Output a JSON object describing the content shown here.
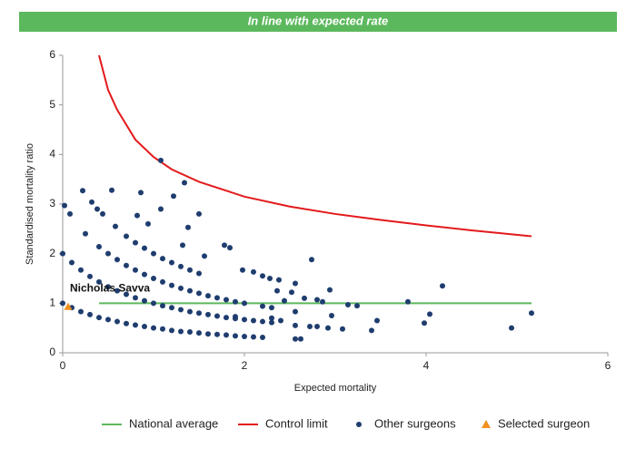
{
  "chart_data": {
    "type": "scatter",
    "title": "In line with expected rate",
    "xlabel": "Expected mortality",
    "ylabel": "Standardised mortality ratio",
    "xlim": [
      0,
      6
    ],
    "ylim": [
      0,
      6
    ],
    "xticks": [
      0,
      2,
      4,
      6
    ],
    "yticks": [
      0,
      1,
      2,
      3,
      4,
      5,
      6
    ],
    "series": [
      {
        "name": "National average",
        "kind": "line",
        "color": "#5cb85c",
        "x": [
          0.4,
          5.16
        ],
        "values": [
          1,
          1
        ]
      },
      {
        "name": "Control limit",
        "kind": "line",
        "color": "#e31a1c",
        "x": [
          0.4,
          0.5,
          0.6,
          0.8,
          1.0,
          1.2,
          1.5,
          2.0,
          2.5,
          3.0,
          3.5,
          4.0,
          4.5,
          5.16
        ],
        "values": [
          6.0,
          5.3,
          4.9,
          4.3,
          3.95,
          3.7,
          3.45,
          3.15,
          2.95,
          2.8,
          2.68,
          2.57,
          2.47,
          2.35
        ]
      },
      {
        "name": "Other surgeons",
        "kind": "points",
        "marker": "circle",
        "color": "#1f3d6e",
        "x": [
          0,
          0.1,
          0.2,
          0.3,
          0.4,
          0.5,
          0.6,
          0.7,
          0.8,
          0.9,
          1.0,
          1.1,
          1.2,
          1.3,
          1.4,
          1.5,
          1.6,
          1.7,
          1.8,
          1.9,
          2.0,
          2.1,
          2.2,
          0,
          0.1,
          0.2,
          0.3,
          0.4,
          0.5,
          0.6,
          0.7,
          0.8,
          0.9,
          1.0,
          1.1,
          1.2,
          1.3,
          1.4,
          1.5,
          1.6,
          1.7,
          1.8,
          1.9,
          2.0,
          2.1,
          2.2,
          2.3,
          0.25,
          0.4,
          0.5,
          0.6,
          0.7,
          0.8,
          0.9,
          1.0,
          1.1,
          1.2,
          1.3,
          1.4,
          1.5,
          1.6,
          1.7,
          1.8,
          1.9,
          2.0,
          2.2,
          2.3,
          0.7,
          0.8,
          0.9,
          1.0,
          1.1,
          1.2,
          1.3,
          1.4,
          1.5,
          0.02,
          0.08,
          0.22,
          0.32,
          0.38,
          0.44,
          0.54,
          0.58,
          0.82,
          0.86,
          0.94,
          1.08,
          1.08,
          1.22,
          1.34,
          1.38,
          1.5,
          1.32,
          1.78,
          1.84,
          1.56,
          1.98,
          2.1,
          2.2,
          2.28,
          2.38,
          2.56,
          2.74,
          2.94,
          2.66,
          2.8,
          2.86,
          3.14,
          3.24,
          3.8,
          4.18,
          3.46,
          3.4,
          4.04,
          3.98,
          4.94,
          5.16,
          2.56,
          2.56,
          2.72,
          2.8,
          2.92,
          3.08,
          2.96,
          2.56,
          2.62,
          1.9,
          2.3,
          2.4,
          2.44,
          2.52,
          2.36
        ],
        "values": [
          1,
          0.91,
          0.83,
          0.77,
          0.71,
          0.67,
          0.63,
          0.59,
          0.56,
          0.53,
          0.5,
          0.48,
          0.45,
          0.43,
          0.42,
          0.4,
          0.38,
          0.37,
          0.36,
          0.34,
          0.33,
          0.32,
          0.31,
          2,
          1.82,
          1.67,
          1.54,
          1.43,
          1.33,
          1.25,
          1.18,
          1.11,
          1.05,
          1.0,
          0.95,
          0.91,
          0.87,
          0.83,
          0.8,
          0.77,
          0.74,
          0.71,
          0.69,
          0.67,
          0.65,
          0.63,
          0.61,
          2.4,
          2.14,
          2.0,
          1.88,
          1.76,
          1.67,
          1.58,
          1.5,
          1.43,
          1.36,
          1.3,
          1.25,
          1.2,
          1.15,
          1.11,
          1.07,
          1.03,
          1.0,
          0.94,
          0.91,
          2.35,
          2.22,
          2.11,
          2.0,
          1.9,
          1.82,
          1.74,
          1.67,
          1.6,
          2.97,
          2.8,
          3.27,
          3.04,
          2.9,
          2.8,
          3.28,
          2.55,
          2.77,
          3.23,
          2.6,
          3.88,
          2.9,
          3.16,
          3.43,
          2.53,
          2.8,
          2.17,
          2.17,
          2.12,
          1.95,
          1.67,
          1.63,
          1.55,
          1.5,
          1.47,
          1.4,
          1.88,
          1.27,
          1.1,
          1.07,
          1.03,
          0.97,
          0.95,
          1.03,
          1.35,
          0.65,
          0.45,
          0.78,
          0.6,
          0.5,
          0.8,
          0.83,
          0.55,
          0.53,
          0.53,
          0.5,
          0.48,
          0.75,
          0.28,
          0.28,
          0.73,
          0.7,
          0.65,
          1.05,
          1.22,
          1.25
        ]
      },
      {
        "name": "Selected surgeon",
        "kind": "points",
        "marker": "triangle",
        "color": "#f0901e",
        "label": "Nicholas Savva",
        "x": [
          0.06
        ],
        "values": [
          0.93
        ]
      }
    ]
  }
}
